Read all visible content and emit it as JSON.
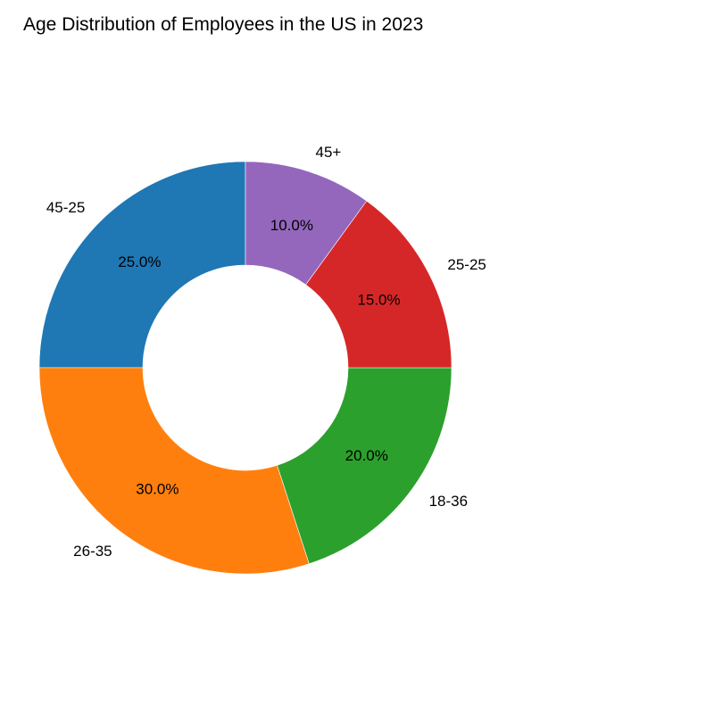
{
  "chart_data": {
    "type": "pie",
    "style": "donut",
    "title": "Age Distribution of Employees in the US in 2023",
    "start_angle_deg": 90,
    "direction": "counterclockwise",
    "slices": [
      {
        "label": "45-25",
        "value": 25.0,
        "pct_label": "25.0%",
        "color": "#1f77b4"
      },
      {
        "label": "26-35",
        "value": 30.0,
        "pct_label": "30.0%",
        "color": "#ff7f0e"
      },
      {
        "label": "18-36",
        "value": 20.0,
        "pct_label": "20.0%",
        "color": "#2ca02c"
      },
      {
        "label": "25-25",
        "value": 15.0,
        "pct_label": "15.0%",
        "color": "#d62728"
      },
      {
        "label": "45+",
        "value": 10.0,
        "pct_label": "10.0%",
        "color": "#9467bd"
      }
    ]
  }
}
